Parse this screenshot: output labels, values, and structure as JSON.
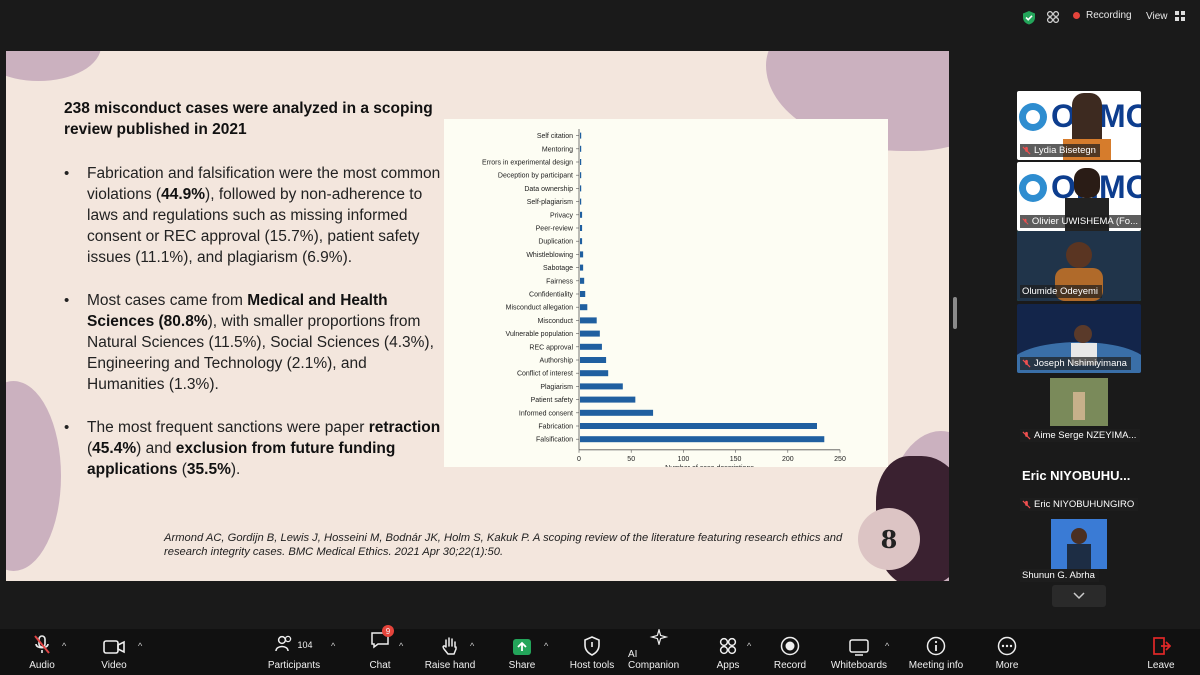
{
  "top": {
    "recording_label": "Recording",
    "view_label": "View"
  },
  "slide": {
    "title": "238 misconduct cases were analyzed in a scoping review published in 2021",
    "bullet1": {
      "t1": "Fabrication and falsification were the most common violations (",
      "b1": "44.9%",
      "t2": "), followed by non-adherence to laws and regulations such as missing informed consent or REC approval (15.7%), patient safety issues (11.1%), and plagiarism (6.9%)."
    },
    "bullet2": {
      "t1": "Most cases came from ",
      "b1": "Medical and Health Sciences (80.8%",
      "t2": "), with smaller proportions from Natural Sciences (11.5%), Social Sciences (4.3%), Engineering and Technology (2.1%), and Humanities (1.3%)."
    },
    "bullet3": {
      "t1": "The most frequent sanctions were paper ",
      "b1": "retraction",
      "t2": " (",
      "b2": "45.4%",
      "t3": ") and ",
      "b3": "exclusion from future funding applications",
      "t4": " (",
      "b4": "35.5%",
      "t5": ")."
    },
    "citation": "Armond AC, Gordijn B, Lewis J, Hosseini M, Bodnár JK, Holm S, Kakuk P. A scoping review of the literature featuring research ethics and research integrity cases. BMC Medical Ethics. 2021 Apr 30;22(1):50.",
    "page_number": "8"
  },
  "chart_data": {
    "type": "bar",
    "orientation": "horizontal",
    "categories": [
      "Self citation",
      "Mentoring",
      "Errors in experimental design",
      "Deception by participant",
      "Data ownership",
      "Self-plagiarism",
      "Privacy",
      "Peer-review",
      "Duplication",
      "Whistleblowing",
      "Sabotage",
      "Fairness",
      "Confidentiality",
      "Misconduct allegation",
      "Misconduct",
      "Vulnerable population",
      "REC approval",
      "Authorship",
      "Conflict of interest",
      "Plagiarism",
      "Patient safety",
      "Informed consent",
      "Fabrication",
      "Falsification"
    ],
    "values": [
      1,
      1,
      1,
      1,
      1,
      1,
      2,
      2,
      2,
      3,
      3,
      4,
      5,
      7,
      16,
      19,
      21,
      25,
      27,
      41,
      53,
      70,
      227,
      234
    ],
    "xlabel": "Number of case descriptions",
    "xlim": [
      0,
      250
    ],
    "xticks": [
      0,
      50,
      100,
      150,
      200,
      250
    ],
    "bar_color": "#1f5fa0"
  },
  "participants": [
    {
      "name": "Lydia Bisetegn"
    },
    {
      "name": "Olivier UWISHEMA (Fo..."
    },
    {
      "name": "Olumide Odeyemi"
    },
    {
      "name": "Joseph Nshimiyimana"
    },
    {
      "name": "Aime Serge NZEYIMA..."
    },
    {
      "name": "Eric NIYOBUHUNGIRO",
      "big_name": "Eric  NIYOBUHU..."
    },
    {
      "name": "Shunun G. Abrha"
    }
  ],
  "toolbar": {
    "audio": "Audio",
    "video": "Video",
    "participants": "Participants",
    "participants_count": "104",
    "chat": "Chat",
    "chat_badge": "9",
    "raise_hand": "Raise hand",
    "share": "Share",
    "host_tools": "Host tools",
    "ai_companion": "AI Companion",
    "apps": "Apps",
    "record": "Record",
    "whiteboards": "Whiteboards",
    "meeting_info": "Meeting info",
    "more": "More",
    "leave": "Leave"
  },
  "colors": {
    "accent_green": "#23a55a",
    "record_red": "#e5443b",
    "leave_red": "#e02828",
    "slide_bg": "#f3e6dd",
    "blob_mauve": "#cbb1bf",
    "blob_dark": "#3a2130"
  }
}
